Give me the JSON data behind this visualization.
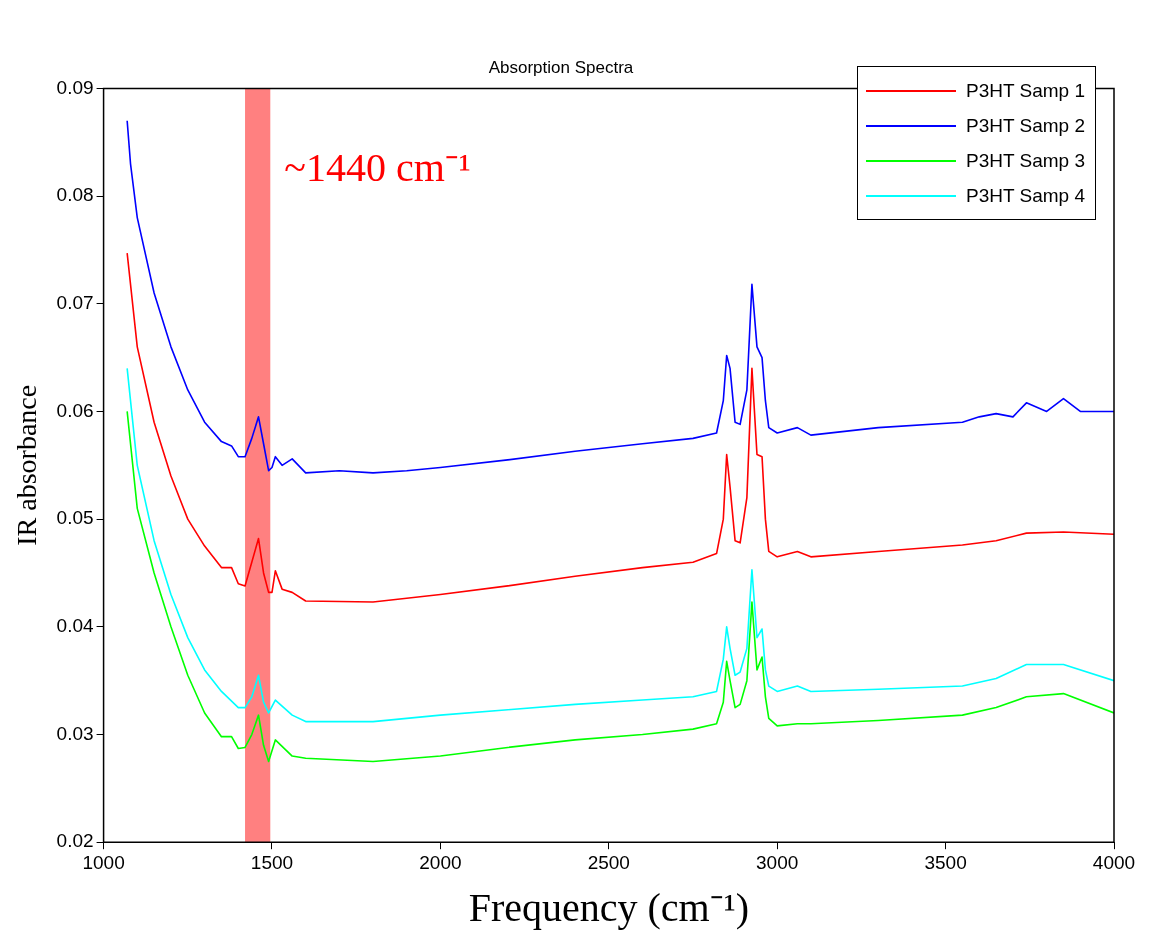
{
  "chart_data": {
    "type": "line",
    "title": "Absorption Spectra",
    "xlabel": "Frequency (cm⁻¹)",
    "ylabel": "IR absorbance",
    "xlim": [
      1000,
      4000
    ],
    "xticks": [
      1000,
      1500,
      2000,
      2500,
      3000,
      3500,
      4000
    ],
    "ylim": [
      0.02,
      0.09
    ],
    "yticks": [
      0.02,
      0.03,
      0.04,
      0.05,
      0.06,
      0.07,
      0.08,
      0.09
    ],
    "grid": false,
    "legend": "top right",
    "marker": "none",
    "line_style": "solid",
    "bands": [
      {
        "axis": "x",
        "from": 1420,
        "to": 1495,
        "label": "~1440 cm⁻¹",
        "color": "#ff8080"
      }
    ],
    "series": [
      {
        "name": "P3HT Samp 1",
        "color": "#ff0000",
        "x": [
          1070,
          1100,
          1150,
          1200,
          1250,
          1300,
          1350,
          1380,
          1400,
          1420,
          1440,
          1460,
          1475,
          1490,
          1500,
          1510,
          1530,
          1560,
          1600,
          1800,
          2000,
          2200,
          2400,
          2600,
          2750,
          2820,
          2840,
          2850,
          2860,
          2875,
          2890,
          2910,
          2925,
          2940,
          2955,
          2965,
          2975,
          3000,
          3060,
          3100,
          3300,
          3550,
          3650,
          3740,
          3850,
          4000
        ],
        "values": [
          0.0747,
          0.066,
          0.059,
          0.054,
          0.05,
          0.0475,
          0.0455,
          0.0455,
          0.044,
          0.0438,
          0.046,
          0.0482,
          0.045,
          0.0432,
          0.0432,
          0.0452,
          0.0435,
          0.0432,
          0.0424,
          0.0423,
          0.043,
          0.0438,
          0.0447,
          0.0455,
          0.046,
          0.0468,
          0.05,
          0.056,
          0.053,
          0.048,
          0.0478,
          0.052,
          0.064,
          0.056,
          0.0558,
          0.05,
          0.047,
          0.0465,
          0.047,
          0.0465,
          0.047,
          0.0476,
          0.048,
          0.0487,
          0.0488,
          0.0486
        ]
      },
      {
        "name": "P3HT Samp 2",
        "color": "#0000ff",
        "x": [
          1070,
          1080,
          1100,
          1150,
          1200,
          1250,
          1300,
          1350,
          1380,
          1400,
          1420,
          1440,
          1460,
          1475,
          1490,
          1500,
          1510,
          1530,
          1560,
          1600,
          1700,
          1800,
          1900,
          2000,
          2200,
          2400,
          2600,
          2750,
          2820,
          2840,
          2850,
          2860,
          2875,
          2890,
          2910,
          2925,
          2940,
          2955,
          2965,
          2975,
          3000,
          3060,
          3100,
          3300,
          3550,
          3600,
          3650,
          3700,
          3740,
          3800,
          3850,
          3900,
          4000
        ],
        "values": [
          0.087,
          0.083,
          0.078,
          0.071,
          0.066,
          0.062,
          0.059,
          0.0572,
          0.0568,
          0.0558,
          0.0558,
          0.0575,
          0.0595,
          0.057,
          0.0545,
          0.0548,
          0.0558,
          0.055,
          0.0556,
          0.0543,
          0.0545,
          0.0543,
          0.0545,
          0.0548,
          0.0555,
          0.0563,
          0.057,
          0.0575,
          0.058,
          0.061,
          0.0652,
          0.064,
          0.059,
          0.0588,
          0.062,
          0.0718,
          0.066,
          0.065,
          0.061,
          0.0585,
          0.058,
          0.0585,
          0.0578,
          0.0585,
          0.059,
          0.0595,
          0.0598,
          0.0595,
          0.0608,
          0.06,
          0.0612,
          0.06,
          0.06
        ]
      },
      {
        "name": "P3HT Samp 3",
        "color": "#00ff00",
        "x": [
          1070,
          1100,
          1150,
          1200,
          1250,
          1300,
          1350,
          1380,
          1400,
          1420,
          1440,
          1460,
          1475,
          1490,
          1510,
          1560,
          1600,
          1800,
          2000,
          2200,
          2400,
          2600,
          2750,
          2820,
          2840,
          2850,
          2860,
          2875,
          2890,
          2910,
          2925,
          2940,
          2955,
          2965,
          2975,
          3000,
          3060,
          3100,
          3300,
          3550,
          3650,
          3740,
          3850,
          4000
        ],
        "values": [
          0.06,
          0.051,
          0.045,
          0.04,
          0.0355,
          0.032,
          0.0298,
          0.0298,
          0.0287,
          0.0288,
          0.03,
          0.0318,
          0.029,
          0.0275,
          0.0295,
          0.028,
          0.0278,
          0.0275,
          0.028,
          0.0288,
          0.0295,
          0.03,
          0.0305,
          0.031,
          0.033,
          0.0368,
          0.035,
          0.0325,
          0.0328,
          0.035,
          0.0423,
          0.036,
          0.0372,
          0.0335,
          0.0315,
          0.0308,
          0.031,
          0.031,
          0.0313,
          0.0318,
          0.0325,
          0.0335,
          0.0338,
          0.032
        ]
      },
      {
        "name": "P3HT Samp 4",
        "color": "#00ffff",
        "x": [
          1070,
          1100,
          1150,
          1200,
          1250,
          1300,
          1350,
          1400,
          1420,
          1440,
          1460,
          1475,
          1490,
          1510,
          1560,
          1600,
          1800,
          2000,
          2200,
          2400,
          2600,
          2750,
          2820,
          2840,
          2850,
          2860,
          2875,
          2890,
          2910,
          2925,
          2940,
          2955,
          2965,
          2975,
          3000,
          3060,
          3100,
          3300,
          3550,
          3650,
          3740,
          3850,
          4000
        ],
        "values": [
          0.064,
          0.055,
          0.048,
          0.043,
          0.039,
          0.036,
          0.034,
          0.0325,
          0.0325,
          0.0335,
          0.0355,
          0.033,
          0.032,
          0.0332,
          0.0318,
          0.0312,
          0.0312,
          0.0318,
          0.0323,
          0.0328,
          0.0332,
          0.0335,
          0.034,
          0.037,
          0.04,
          0.038,
          0.0355,
          0.0358,
          0.038,
          0.0453,
          0.039,
          0.0398,
          0.036,
          0.0345,
          0.034,
          0.0345,
          0.034,
          0.0342,
          0.0345,
          0.0352,
          0.0365,
          0.0365,
          0.035
        ]
      }
    ]
  }
}
